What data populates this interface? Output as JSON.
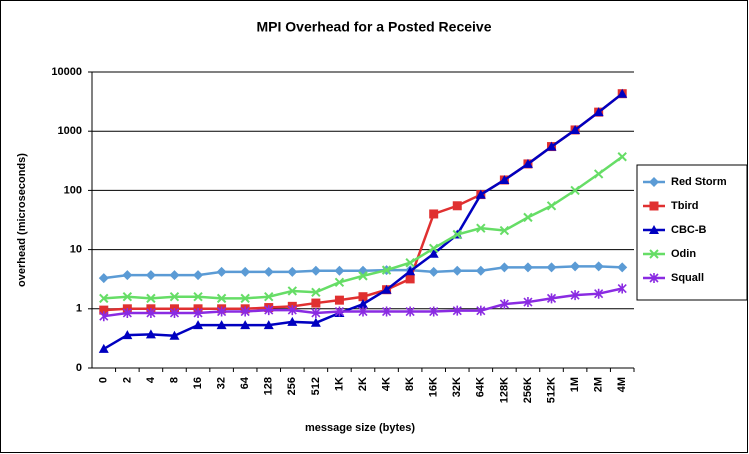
{
  "chart_data": {
    "type": "line",
    "title": "MPI Overhead for a Posted Receive",
    "x_label": "message size (bytes)",
    "y_label": "overhead (microseconds)",
    "categories": [
      "0",
      "2",
      "4",
      "8",
      "16",
      "32",
      "64",
      "128",
      "256",
      "512",
      "1K",
      "2K",
      "4K",
      "8K",
      "16K",
      "32K",
      "64K",
      "128K",
      "256K",
      "512K",
      "1M",
      "2M",
      "4M"
    ],
    "log_y": true,
    "ylim": [
      0.1,
      10000
    ],
    "yticks": [
      {
        "value": 0.1,
        "label": "0"
      },
      1,
      10,
      100,
      1000,
      10000
    ],
    "grid": true,
    "legend": "right",
    "series": [
      {
        "name": "Red Storm",
        "color": "#5b9bd5",
        "marker": "diamond",
        "values": [
          3.3,
          3.7,
          3.7,
          3.7,
          3.7,
          4.2,
          4.2,
          4.2,
          4.2,
          4.4,
          4.4,
          4.4,
          4.5,
          4.5,
          4.2,
          4.4,
          4.4,
          5.0,
          5.0,
          5.0,
          5.2,
          5.2,
          5.0
        ]
      },
      {
        "name": "Tbird",
        "color": "#e03030",
        "marker": "square",
        "values": [
          0.95,
          1.0,
          1.0,
          1.0,
          1.0,
          1.0,
          1.0,
          1.05,
          1.1,
          1.25,
          1.4,
          1.6,
          2.1,
          3.2,
          40,
          55,
          85,
          150,
          280,
          550,
          1050,
          2100,
          4300
        ]
      },
      {
        "name": "CBC-B",
        "color": "#0000c0",
        "marker": "triangle",
        "values": [
          0.21,
          0.36,
          0.37,
          0.35,
          0.53,
          0.53,
          0.53,
          0.53,
          0.6,
          0.58,
          0.85,
          1.2,
          2.1,
          4.3,
          8.5,
          18,
          85,
          150,
          280,
          550,
          1050,
          2100,
          4300
        ]
      },
      {
        "name": "Odin",
        "color": "#66dd66",
        "marker": "x",
        "values": [
          1.5,
          1.6,
          1.5,
          1.6,
          1.6,
          1.5,
          1.5,
          1.6,
          2.0,
          1.9,
          2.8,
          3.6,
          4.5,
          6,
          10.5,
          18,
          23,
          21,
          35,
          55,
          100,
          190,
          370
        ]
      },
      {
        "name": "Squall",
        "color": "#8a2be2",
        "marker": "star",
        "values": [
          0.75,
          0.85,
          0.85,
          0.85,
          0.85,
          0.9,
          0.9,
          0.95,
          0.95,
          0.85,
          0.9,
          0.9,
          0.9,
          0.9,
          0.9,
          0.93,
          0.93,
          1.2,
          1.3,
          1.5,
          1.7,
          1.8,
          2.2
        ]
      }
    ]
  }
}
